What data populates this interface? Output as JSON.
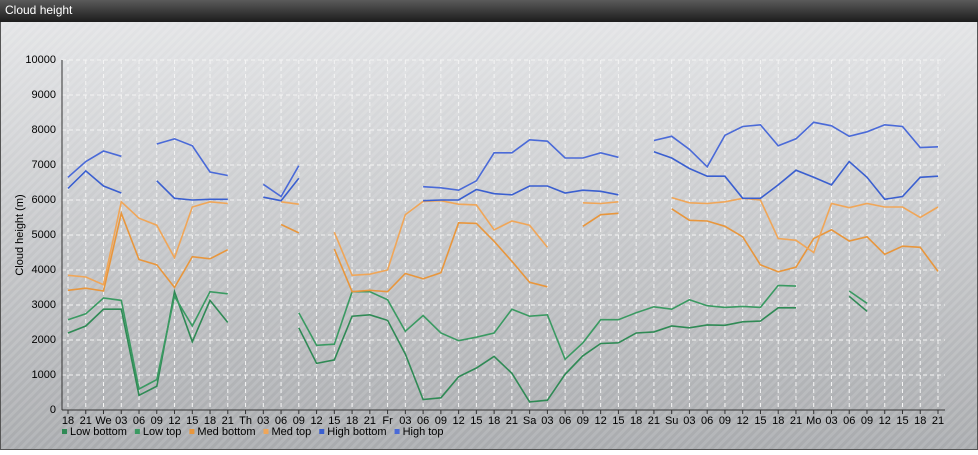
{
  "chart_data": {
    "type": "line",
    "title": "Cloud height",
    "y_label": "Cloud height (m)",
    "categories": [
      "18",
      "21",
      "We",
      "03",
      "06",
      "09",
      "12",
      "15",
      "18",
      "21",
      "Th",
      "03",
      "06",
      "09",
      "12",
      "15",
      "18",
      "21",
      "Fr",
      "03",
      "06",
      "09",
      "12",
      "15",
      "18",
      "21",
      "Sa",
      "03",
      "06",
      "09",
      "12",
      "15",
      "18",
      "21",
      "Su",
      "03",
      "06",
      "09",
      "12",
      "15",
      "18",
      "21",
      "Mo",
      "03",
      "06",
      "09",
      "12",
      "15",
      "18",
      "21"
    ],
    "ylim": [
      0,
      10000
    ],
    "yticks": [
      0,
      1000,
      2000,
      3000,
      4000,
      5000,
      6000,
      7000,
      8000,
      9000,
      10000
    ],
    "grid": true,
    "series": [
      {
        "name": "Low bottom",
        "color": "#2f8a55",
        "values": [
          2200,
          2400,
          2880,
          2880,
          420,
          680,
          3380,
          1950,
          3130,
          2500,
          null,
          null,
          null,
          2350,
          1330,
          1430,
          2680,
          2720,
          2560,
          1600,
          300,
          350,
          950,
          1200,
          1530,
          1050,
          230,
          280,
          1020,
          1550,
          1900,
          1920,
          2200,
          2230,
          2400,
          2350,
          2430,
          2420,
          2520,
          2540,
          2920,
          2920,
          null,
          null,
          3250,
          2820,
          null,
          null,
          null,
          null
        ]
      },
      {
        "name": "Low top",
        "color": "#3a9a62",
        "values": [
          2580,
          2750,
          3200,
          3130,
          600,
          870,
          3250,
          2400,
          3380,
          3320,
          null,
          null,
          null,
          2780,
          1850,
          1880,
          3380,
          3380,
          3150,
          2250,
          2700,
          2200,
          1980,
          2080,
          2200,
          2880,
          2680,
          2720,
          1450,
          1920,
          2580,
          2580,
          2780,
          2950,
          2880,
          3150,
          2980,
          2930,
          2960,
          2930,
          3560,
          3540,
          null,
          null,
          3400,
          3050,
          null,
          null,
          null,
          null
        ]
      },
      {
        "name": "Med bottom",
        "color": "#e8963c",
        "values": [
          3420,
          3480,
          3400,
          5620,
          4300,
          4150,
          3500,
          4380,
          4320,
          4580,
          null,
          null,
          5300,
          5060,
          null,
          4600,
          3380,
          3420,
          3380,
          3900,
          3750,
          3920,
          5350,
          5330,
          4820,
          4250,
          3650,
          3520,
          null,
          5250,
          5580,
          5620,
          null,
          null,
          5750,
          5420,
          5400,
          5250,
          4950,
          4150,
          3950,
          4080,
          4900,
          5150,
          4830,
          4950,
          4450,
          4680,
          4650,
          3960
        ]
      },
      {
        "name": "Med top",
        "color": "#f0a658",
        "values": [
          3850,
          3800,
          3580,
          5950,
          5480,
          5280,
          4350,
          5800,
          5950,
          5900,
          null,
          null,
          5950,
          5880,
          null,
          5080,
          3850,
          3880,
          4000,
          5580,
          5960,
          5980,
          5880,
          5860,
          5150,
          5400,
          5280,
          4650,
          null,
          5920,
          5900,
          5950,
          null,
          null,
          6070,
          5920,
          5900,
          5950,
          6050,
          6000,
          4900,
          4850,
          4500,
          5900,
          5780,
          5900,
          5800,
          5800,
          5500,
          5800
        ]
      },
      {
        "name": "High bottom",
        "color": "#3a5fd0",
        "values": [
          6330,
          6830,
          6400,
          6200,
          null,
          6550,
          6050,
          6000,
          6020,
          6020,
          null,
          6080,
          5980,
          6620,
          null,
          null,
          null,
          null,
          null,
          null,
          5980,
          6000,
          6000,
          6300,
          6180,
          6150,
          6400,
          6400,
          6200,
          6280,
          6250,
          6150,
          null,
          7380,
          7200,
          6900,
          6680,
          6680,
          6050,
          6050,
          6430,
          6850,
          6650,
          6430,
          7100,
          6650,
          6020,
          6100,
          6650,
          6680
        ]
      },
      {
        "name": "High top",
        "color": "#4a6ad8",
        "values": [
          6650,
          7100,
          7400,
          7250,
          null,
          7600,
          7750,
          7550,
          6800,
          6700,
          null,
          6450,
          6100,
          6980,
          null,
          null,
          null,
          null,
          null,
          null,
          6380,
          6350,
          6280,
          6550,
          7350,
          7350,
          7720,
          7680,
          7200,
          7200,
          7350,
          7220,
          null,
          7700,
          7820,
          7450,
          6950,
          7850,
          8100,
          8150,
          7550,
          7750,
          8220,
          8120,
          7820,
          7950,
          8150,
          8100,
          7500,
          7520
        ]
      }
    ]
  }
}
